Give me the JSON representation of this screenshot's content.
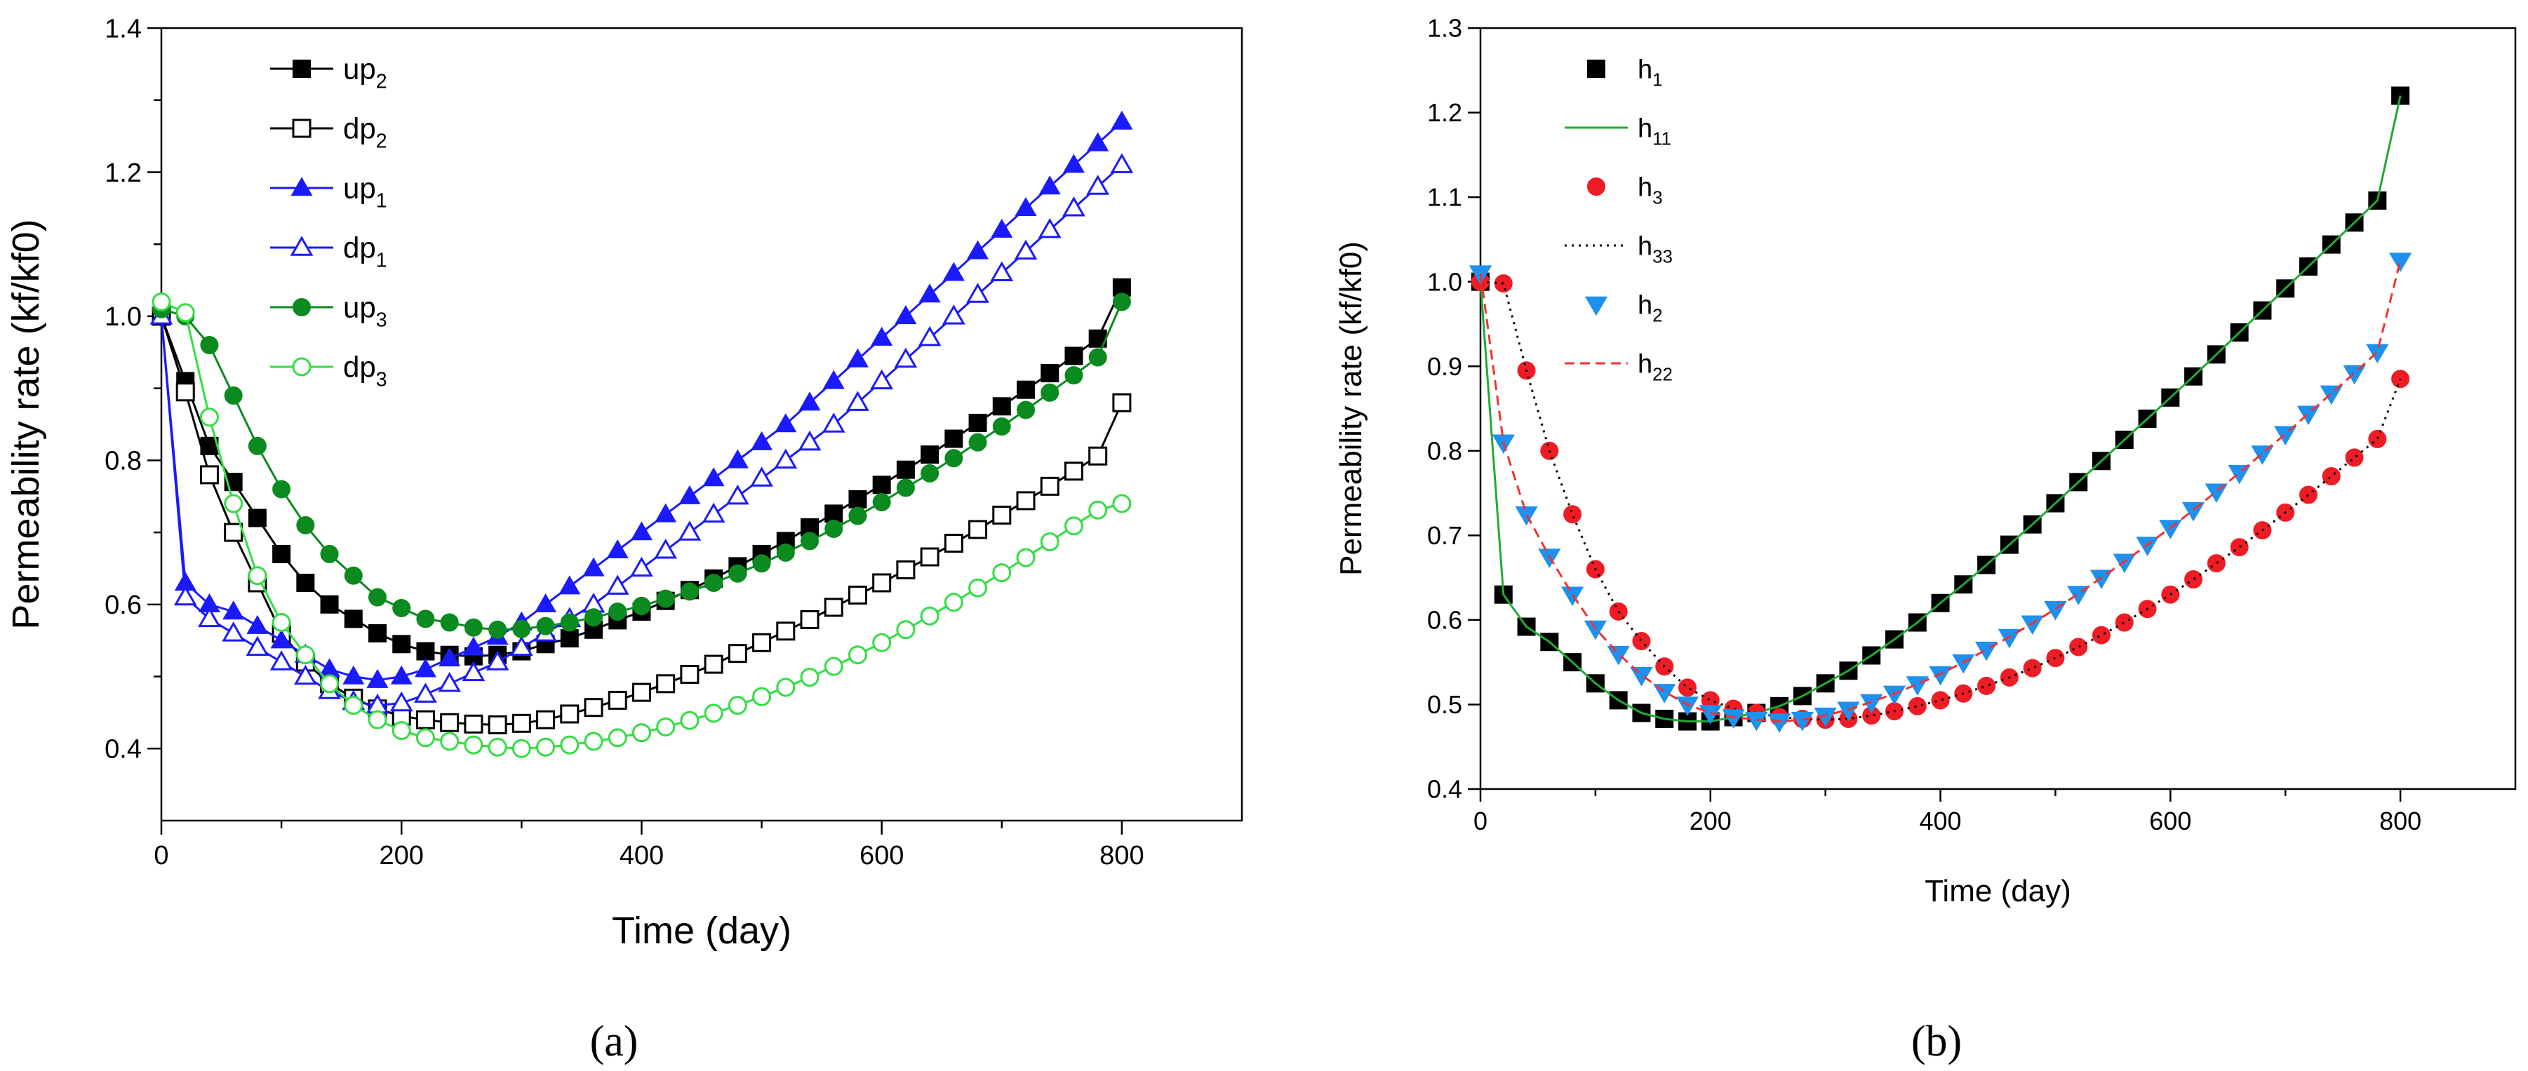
{
  "chart_data": [
    {
      "type": "line",
      "panel_label": "a",
      "xlabel": "Time (day)",
      "ylabel": "Permeability rate (kf/kf0)",
      "xlim": [
        0,
        900
      ],
      "ylim": [
        0.3,
        1.4
      ],
      "xticks": [
        0,
        200,
        400,
        600,
        800
      ],
      "yticks": [
        0.4,
        0.6,
        0.8,
        1.0,
        1.2,
        1.4
      ],
      "legend_position": "top-left",
      "x": [
        0,
        20,
        40,
        60,
        80,
        100,
        120,
        140,
        160,
        180,
        200,
        220,
        240,
        260,
        280,
        300,
        320,
        340,
        360,
        380,
        400,
        420,
        440,
        460,
        480,
        500,
        520,
        540,
        560,
        580,
        600,
        620,
        640,
        660,
        680,
        700,
        720,
        740,
        760,
        780,
        800
      ],
      "series": [
        {
          "name": "up",
          "sub": "2",
          "color": "#000000",
          "marker": "square",
          "filled": true,
          "values": [
            1.0,
            0.91,
            0.82,
            0.77,
            0.72,
            0.67,
            0.63,
            0.6,
            0.58,
            0.56,
            0.545,
            0.535,
            0.53,
            0.528,
            0.53,
            0.535,
            0.545,
            0.553,
            0.565,
            0.578,
            0.59,
            0.605,
            0.62,
            0.636,
            0.653,
            0.67,
            0.688,
            0.707,
            0.726,
            0.746,
            0.766,
            0.787,
            0.808,
            0.83,
            0.852,
            0.875,
            0.898,
            0.921,
            0.945,
            0.969,
            1.04
          ]
        },
        {
          "name": "dp",
          "sub": "2",
          "color": "#000000",
          "marker": "square",
          "filled": false,
          "values": [
            1.0,
            0.895,
            0.78,
            0.7,
            0.63,
            0.56,
            0.52,
            0.49,
            0.47,
            0.455,
            0.445,
            0.44,
            0.436,
            0.434,
            0.433,
            0.435,
            0.44,
            0.448,
            0.457,
            0.467,
            0.478,
            0.49,
            0.503,
            0.517,
            0.532,
            0.547,
            0.563,
            0.579,
            0.596,
            0.613,
            0.63,
            0.648,
            0.666,
            0.685,
            0.704,
            0.724,
            0.744,
            0.764,
            0.785,
            0.806,
            0.88
          ]
        },
        {
          "name": "up",
          "sub": "1",
          "color": "#1a1aff",
          "marker": "triangle",
          "filled": true,
          "values": [
            1.0,
            0.63,
            0.6,
            0.59,
            0.57,
            0.55,
            0.53,
            0.51,
            0.5,
            0.495,
            0.5,
            0.51,
            0.525,
            0.54,
            0.555,
            0.575,
            0.6,
            0.625,
            0.65,
            0.675,
            0.7,
            0.725,
            0.75,
            0.775,
            0.8,
            0.825,
            0.85,
            0.88,
            0.91,
            0.94,
            0.97,
            1.0,
            1.03,
            1.06,
            1.09,
            1.12,
            1.15,
            1.18,
            1.21,
            1.24,
            1.27
          ]
        },
        {
          "name": "dp",
          "sub": "1",
          "color": "#1a1aff",
          "marker": "triangle",
          "filled": false,
          "values": [
            1.0,
            0.61,
            0.58,
            0.56,
            0.54,
            0.52,
            0.5,
            0.48,
            0.465,
            0.46,
            0.463,
            0.475,
            0.49,
            0.505,
            0.52,
            0.54,
            0.56,
            0.58,
            0.6,
            0.625,
            0.65,
            0.675,
            0.7,
            0.725,
            0.75,
            0.775,
            0.8,
            0.825,
            0.85,
            0.88,
            0.91,
            0.94,
            0.97,
            1.0,
            1.03,
            1.06,
            1.09,
            1.12,
            1.15,
            1.18,
            1.21
          ]
        },
        {
          "name": "up",
          "sub": "3",
          "color": "#0a8a1f",
          "marker": "circle",
          "filled": true,
          "values": [
            1.01,
            1.0,
            0.96,
            0.89,
            0.82,
            0.76,
            0.71,
            0.67,
            0.64,
            0.61,
            0.595,
            0.58,
            0.575,
            0.568,
            0.565,
            0.566,
            0.57,
            0.575,
            0.582,
            0.59,
            0.598,
            0.608,
            0.618,
            0.63,
            0.643,
            0.657,
            0.672,
            0.688,
            0.705,
            0.723,
            0.742,
            0.762,
            0.782,
            0.803,
            0.825,
            0.847,
            0.87,
            0.894,
            0.918,
            0.943,
            1.02
          ]
        },
        {
          "name": "dp",
          "sub": "3",
          "color": "#33dd44",
          "marker": "circle",
          "filled": false,
          "values": [
            1.02,
            1.005,
            0.86,
            0.74,
            0.64,
            0.575,
            0.53,
            0.49,
            0.46,
            0.44,
            0.425,
            0.415,
            0.41,
            0.405,
            0.402,
            0.4,
            0.402,
            0.405,
            0.41,
            0.415,
            0.422,
            0.43,
            0.439,
            0.449,
            0.46,
            0.472,
            0.485,
            0.499,
            0.514,
            0.53,
            0.547,
            0.565,
            0.584,
            0.603,
            0.623,
            0.644,
            0.665,
            0.687,
            0.709,
            0.731,
            0.74
          ]
        }
      ]
    },
    {
      "type": "scatter",
      "panel_label": "b",
      "xlabel": "Time (day)",
      "ylabel": "Permeability rate (kf/kf0)",
      "xlim": [
        0,
        900
      ],
      "ylim": [
        0.4,
        1.3
      ],
      "xticks": [
        0,
        200,
        400,
        600,
        800
      ],
      "yticks": [
        0.4,
        0.5,
        0.6,
        0.7,
        0.8,
        0.9,
        1.0,
        1.1,
        1.2,
        1.3
      ],
      "legend_position": "top-left",
      "x": [
        0,
        20,
        40,
        60,
        80,
        100,
        120,
        140,
        160,
        180,
        200,
        220,
        240,
        260,
        280,
        300,
        320,
        340,
        360,
        380,
        400,
        420,
        440,
        460,
        480,
        500,
        520,
        540,
        560,
        580,
        600,
        620,
        640,
        660,
        680,
        700,
        720,
        740,
        760,
        780,
        800
      ],
      "series": [
        {
          "name": "h",
          "sub": "1",
          "color": "#000000",
          "marker": "square",
          "filled": true,
          "line": "none",
          "values": [
            1.0,
            0.63,
            0.592,
            0.574,
            0.55,
            0.525,
            0.505,
            0.49,
            0.483,
            0.48,
            0.48,
            0.485,
            0.49,
            0.498,
            0.51,
            0.525,
            0.54,
            0.558,
            0.577,
            0.597,
            0.62,
            0.642,
            0.665,
            0.689,
            0.713,
            0.738,
            0.763,
            0.788,
            0.813,
            0.838,
            0.863,
            0.888,
            0.914,
            0.94,
            0.966,
            0.992,
            1.018,
            1.044,
            1.07,
            1.096,
            1.22
          ]
        },
        {
          "name": "h",
          "sub": "11",
          "color": "#22aa33",
          "marker": "none",
          "line": "solid",
          "values": [
            1.0,
            0.63,
            0.592,
            0.574,
            0.55,
            0.525,
            0.505,
            0.49,
            0.483,
            0.48,
            0.48,
            0.485,
            0.49,
            0.498,
            0.51,
            0.525,
            0.54,
            0.558,
            0.577,
            0.597,
            0.62,
            0.642,
            0.665,
            0.689,
            0.713,
            0.738,
            0.763,
            0.788,
            0.813,
            0.838,
            0.863,
            0.888,
            0.914,
            0.94,
            0.966,
            0.992,
            1.018,
            1.044,
            1.07,
            1.096,
            1.22
          ]
        },
        {
          "name": "h",
          "sub": "3",
          "color": "#ee1c25",
          "marker": "circle",
          "filled": true,
          "line": "none",
          "values": [
            1.0,
            0.998,
            0.895,
            0.8,
            0.725,
            0.66,
            0.61,
            0.575,
            0.545,
            0.52,
            0.505,
            0.495,
            0.49,
            0.485,
            0.483,
            0.482,
            0.483,
            0.487,
            0.492,
            0.498,
            0.505,
            0.513,
            0.522,
            0.532,
            0.543,
            0.555,
            0.568,
            0.582,
            0.597,
            0.613,
            0.63,
            0.648,
            0.667,
            0.686,
            0.706,
            0.727,
            0.748,
            0.77,
            0.792,
            0.814,
            0.885
          ]
        },
        {
          "name": "h",
          "sub": "33",
          "color": "#000000",
          "marker": "none",
          "line": "dotted",
          "values": [
            1.0,
            0.998,
            0.895,
            0.8,
            0.725,
            0.66,
            0.61,
            0.575,
            0.545,
            0.52,
            0.505,
            0.495,
            0.49,
            0.485,
            0.483,
            0.482,
            0.483,
            0.487,
            0.492,
            0.498,
            0.505,
            0.513,
            0.522,
            0.532,
            0.543,
            0.555,
            0.568,
            0.582,
            0.597,
            0.613,
            0.63,
            0.648,
            0.667,
            0.686,
            0.706,
            0.727,
            0.748,
            0.77,
            0.792,
            0.814,
            0.885
          ]
        },
        {
          "name": "h",
          "sub": "2",
          "color": "#1e90ee",
          "marker": "triangle-down",
          "filled": true,
          "line": "none",
          "values": [
            1.01,
            0.81,
            0.725,
            0.675,
            0.63,
            0.59,
            0.56,
            0.535,
            0.515,
            0.5,
            0.49,
            0.485,
            0.482,
            0.48,
            0.482,
            0.487,
            0.494,
            0.503,
            0.513,
            0.524,
            0.536,
            0.55,
            0.565,
            0.58,
            0.596,
            0.613,
            0.631,
            0.65,
            0.669,
            0.689,
            0.709,
            0.73,
            0.752,
            0.774,
            0.797,
            0.82,
            0.844,
            0.868,
            0.892,
            0.917,
            1.025
          ]
        },
        {
          "name": "h",
          "sub": "22",
          "color": "#ee3333",
          "marker": "none",
          "line": "dashed",
          "values": [
            1.01,
            0.81,
            0.725,
            0.675,
            0.63,
            0.59,
            0.56,
            0.535,
            0.515,
            0.5,
            0.49,
            0.485,
            0.482,
            0.48,
            0.482,
            0.487,
            0.494,
            0.503,
            0.513,
            0.524,
            0.536,
            0.55,
            0.565,
            0.58,
            0.596,
            0.613,
            0.631,
            0.65,
            0.669,
            0.689,
            0.709,
            0.73,
            0.752,
            0.774,
            0.797,
            0.82,
            0.844,
            0.868,
            0.892,
            0.917,
            1.025
          ]
        }
      ]
    }
  ],
  "captions": {
    "a": "(a)",
    "b": "(b)"
  }
}
